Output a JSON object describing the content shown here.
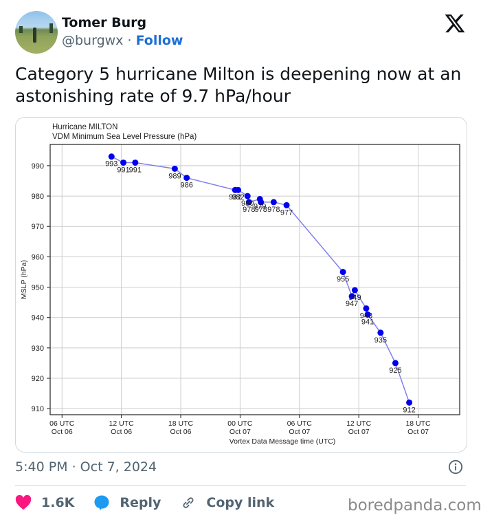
{
  "author": {
    "name": "Tomer Burg",
    "handle": "@burgwx",
    "separator": "·",
    "follow_label": "Follow"
  },
  "tweet": {
    "text": "Category 5 hurricane Milton is deepening now at an astonishing rate of 9.7 hPa/hour"
  },
  "meta": {
    "timestamp": "5:40 PM · Oct 7, 2024"
  },
  "actions": {
    "likes": "1.6K",
    "reply_label": "Reply",
    "copy_label": "Copy link"
  },
  "watermark": "boredpanda.com",
  "colors": {
    "like": "#f91880",
    "reply": "#1d9bf0",
    "follow": "#1d6fd8",
    "marker": "#0000ee",
    "line": "#8080ee"
  },
  "icons": {
    "brand": "x-logo-icon",
    "info": "info-icon",
    "like": "heart-icon",
    "reply": "speech-bubble-icon",
    "copy": "link-icon"
  },
  "chart_data": {
    "type": "line",
    "title": "Hurricane MILTON",
    "subtitle": "VDM Minimum Sea Level Pressure (hPa)",
    "xlabel": "Vortex Data Message time (UTC)",
    "ylabel": "MSLP (hPa)",
    "x_units": "hours since 00 UTC Oct 06",
    "xlim": [
      4.8,
      46.2
    ],
    "ylim": [
      908,
      997
    ],
    "grid": true,
    "yticks": [
      910,
      920,
      930,
      940,
      950,
      960,
      970,
      980,
      990
    ],
    "xticks": [
      {
        "x": 6,
        "label1": "06 UTC",
        "label2": "Oct 06"
      },
      {
        "x": 12,
        "label1": "12 UTC",
        "label2": "Oct 06"
      },
      {
        "x": 18,
        "label1": "18 UTC",
        "label2": "Oct 06"
      },
      {
        "x": 24,
        "label1": "00 UTC",
        "label2": "Oct 07"
      },
      {
        "x": 30,
        "label1": "06 UTC",
        "label2": "Oct 07"
      },
      {
        "x": 36,
        "label1": "12 UTC",
        "label2": "Oct 07"
      },
      {
        "x": 42,
        "label1": "18 UTC",
        "label2": "Oct 07"
      }
    ],
    "series": [
      {
        "name": "VDM MSLP",
        "x": [
          11.0,
          12.2,
          13.4,
          17.4,
          18.6,
          23.5,
          23.8,
          24.75,
          24.9,
          26.0,
          26.1,
          27.4,
          28.7,
          34.4,
          35.3,
          35.6,
          36.75,
          36.9,
          38.2,
          39.7,
          41.1
        ],
        "values": [
          993,
          991,
          991,
          989,
          986,
          982,
          982,
          980,
          978,
          979,
          978,
          978,
          977,
          955,
          947,
          949,
          943,
          941,
          935,
          925,
          912
        ]
      }
    ]
  }
}
